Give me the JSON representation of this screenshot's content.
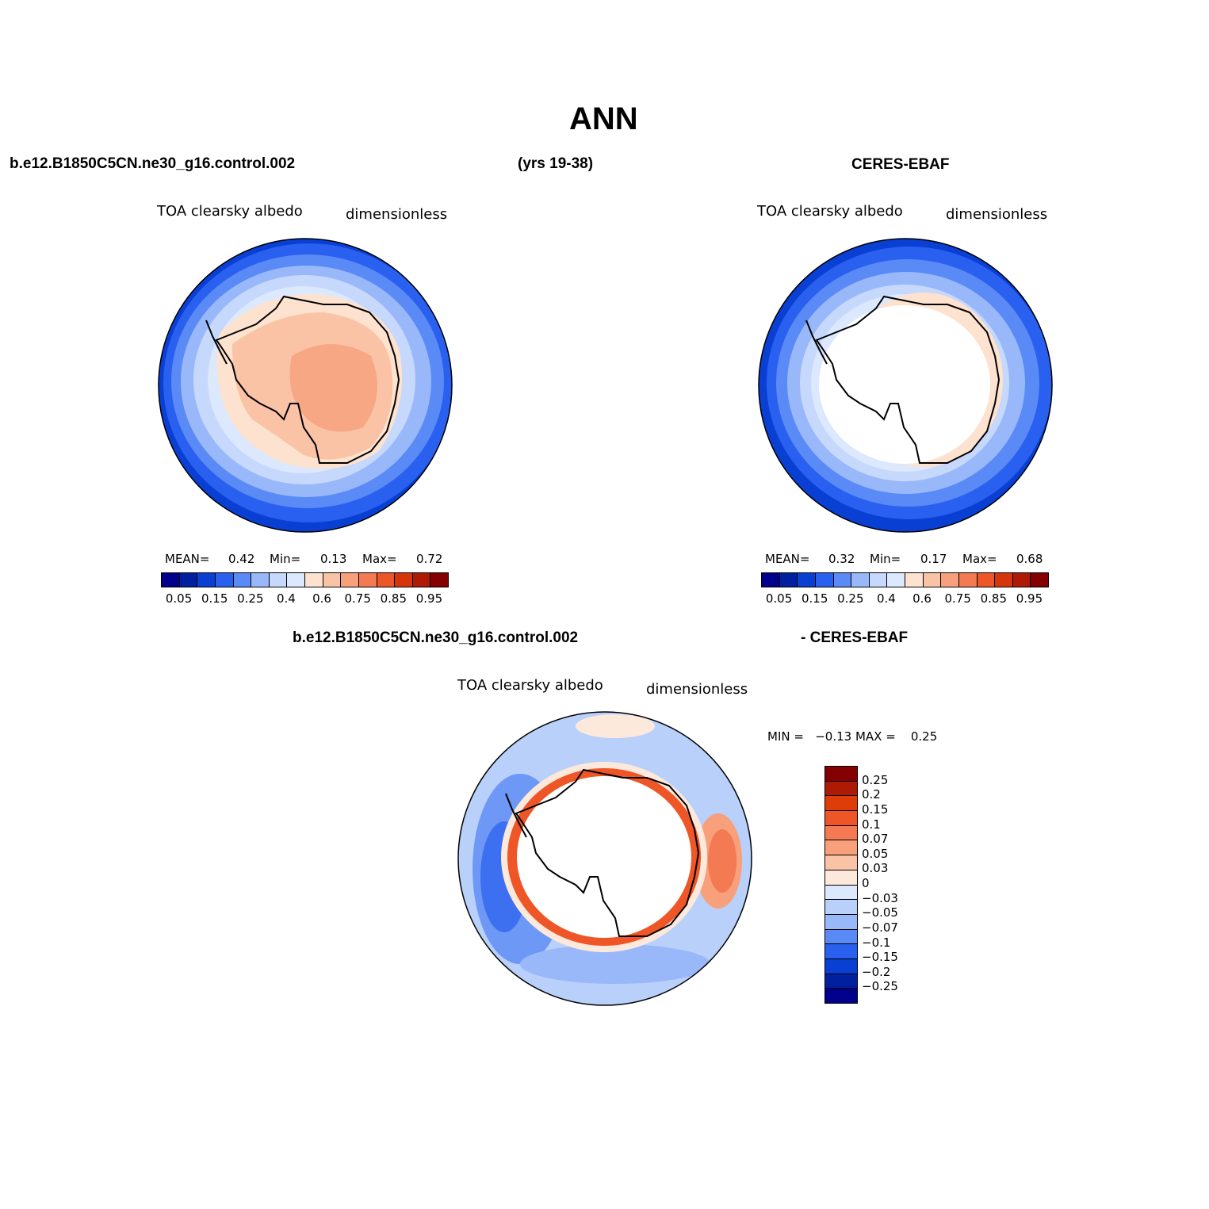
{
  "title": "ANN",
  "header": {
    "case_name": "b.e12.B1850C5CN.ne30_g16.control.002",
    "years": "(yrs 19-38)",
    "obs_name": "CERES-EBAF"
  },
  "panels": {
    "model": {
      "variable": "TOA clearsky albedo",
      "units": "dimensionless",
      "mean_label": "MEAN=",
      "mean": "0.42",
      "min_label": "Min=",
      "min": "0.13",
      "max_label": "Max=",
      "max": "0.72"
    },
    "obs": {
      "variable": "TOA clearsky albedo",
      "units": "dimensionless",
      "mean_label": "MEAN=",
      "mean": "0.32",
      "min_label": "Min=",
      "min": "0.17",
      "max_label": "Max=",
      "max": "0.68"
    },
    "diff": {
      "title_left": "b.e12.B1850C5CN.ne30_g16.control.002",
      "title_right": "- CERES-EBAF",
      "variable": "TOA clearsky albedo",
      "units": "dimensionless",
      "minmax": "MIN =   −0.13 MAX =    0.25"
    }
  },
  "colorbar_abs": {
    "colors": [
      "#00008c",
      "#00209f",
      "#0a3fd4",
      "#2a60f0",
      "#5a8af5",
      "#99b8fa",
      "#c6d8fc",
      "#dbe8fd",
      "#fde2cf",
      "#fbc3a6",
      "#f8a07c",
      "#f37a52",
      "#ee5527",
      "#d6350a",
      "#ae1a04",
      "#840002"
    ],
    "labels": [
      "0.05",
      "0.15",
      "0.25",
      "0.4",
      "0.6",
      "0.75",
      "0.85",
      "0.95"
    ]
  },
  "colorbar_diff": {
    "colors": [
      "#840002",
      "#ae1a04",
      "#de3d0a",
      "#ee5527",
      "#f37a52",
      "#f8a07c",
      "#fbc3a6",
      "#fde9dc",
      "#dbe8fd",
      "#b9d0fb",
      "#99b8fa",
      "#5a8af5",
      "#2a60f0",
      "#0a3fd4",
      "#00209f",
      "#00008c"
    ],
    "labels": [
      "0.25",
      "0.2",
      "0.15",
      "0.1",
      "0.07",
      "0.05",
      "0.03",
      "0",
      "−0.03",
      "−0.05",
      "−0.07",
      "−0.1",
      "−0.15",
      "−0.2",
      "−0.25"
    ]
  }
}
